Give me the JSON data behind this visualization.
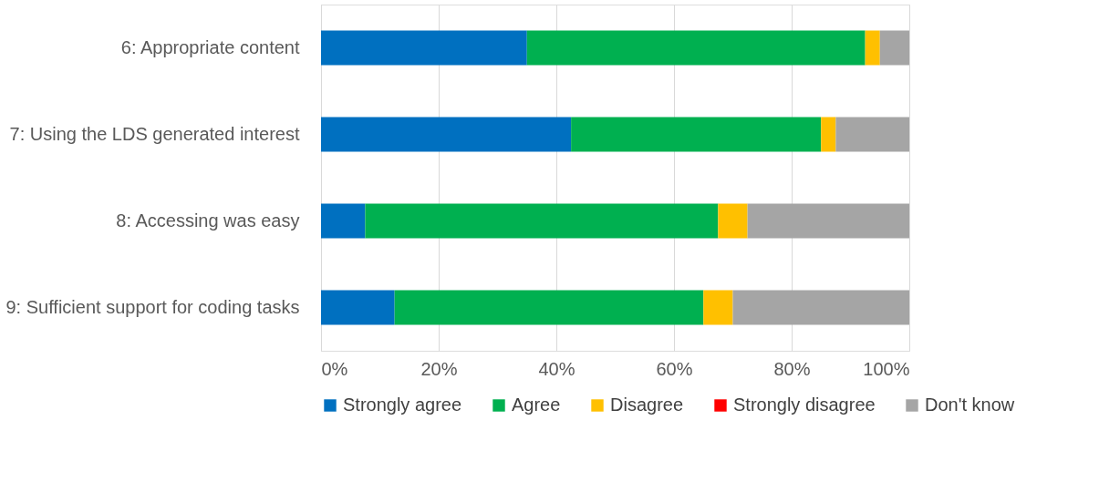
{
  "chart_data": {
    "type": "bar",
    "orientation": "horizontal",
    "stacked": true,
    "categories": [
      "6: Appropriate content",
      "7: Using the LDS generated interest",
      "8: Accessing was easy",
      "9: Sufficient support for coding tasks"
    ],
    "series": [
      {
        "name": "Strongly agree",
        "color": "#0070c0",
        "values": [
          35,
          42.5,
          7.5,
          12.5
        ]
      },
      {
        "name": "Agree",
        "color": "#00b050",
        "values": [
          57.5,
          42.5,
          60,
          52.5
        ]
      },
      {
        "name": "Disagree",
        "color": "#ffc000",
        "values": [
          2.5,
          2.5,
          5,
          5
        ]
      },
      {
        "name": "Strongly disagree",
        "color": "#ff0000",
        "values": [
          0,
          0,
          0,
          0
        ]
      },
      {
        "name": "Don't know",
        "color": "#a5a5a5",
        "values": [
          5,
          12.5,
          27.5,
          30
        ]
      }
    ],
    "xlim": [
      0,
      100
    ],
    "xticks": [
      {
        "value": 0,
        "label": "0%"
      },
      {
        "value": 20,
        "label": "20%"
      },
      {
        "value": 40,
        "label": "40%"
      },
      {
        "value": 60,
        "label": "60%"
      },
      {
        "value": 80,
        "label": "80%"
      },
      {
        "value": 100,
        "label": "100%"
      }
    ],
    "grid": "x",
    "legend": "bottom"
  }
}
